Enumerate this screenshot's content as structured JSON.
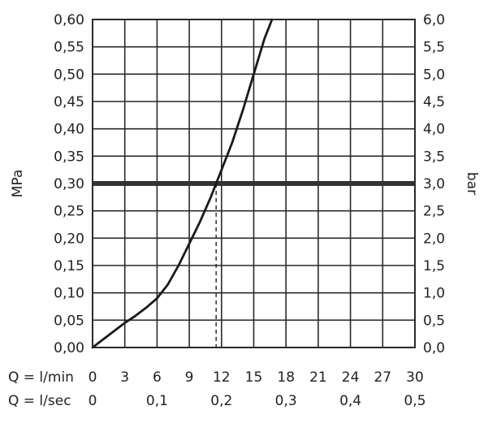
{
  "chart_data": {
    "type": "line",
    "y_left": {
      "label": "MPa",
      "range": [
        0,
        0.6
      ],
      "ticks": [
        "0,00",
        "0,05",
        "0,10",
        "0,15",
        "0,20",
        "0,25",
        "0,30",
        "0,35",
        "0,40",
        "0,45",
        "0,50",
        "0,55",
        "0,60"
      ]
    },
    "y_right": {
      "label": "bar",
      "range": [
        0,
        6
      ],
      "ticks": [
        "0,0",
        "0,5",
        "1,0",
        "1,5",
        "2,0",
        "2,5",
        "3,0",
        "3,5",
        "4,0",
        "4,5",
        "5,0",
        "5,5",
        "6,0"
      ]
    },
    "x_lmin": {
      "label": "Q = l/min",
      "range": [
        0,
        30
      ],
      "ticks": [
        "0",
        "3",
        "6",
        "9",
        "12",
        "15",
        "18",
        "21",
        "24",
        "27",
        "30"
      ]
    },
    "x_lsec": {
      "label": "Q = l/sec",
      "values": [
        0,
        0.1,
        0.2,
        0.3,
        0.4,
        0.5
      ],
      "ticks": [
        "0",
        "0,1",
        "0,2",
        "0,3",
        "0,4",
        "0,5"
      ]
    },
    "grid": true,
    "series": [
      {
        "color": "#1a1a1a",
        "x": [
          0,
          1,
          2,
          3,
          4,
          5,
          6,
          7,
          8,
          9,
          10,
          11,
          11.5,
          12,
          13,
          14,
          15,
          16,
          16.7
        ],
        "y": [
          0,
          0.015,
          0.03,
          0.045,
          0.058,
          0.073,
          0.09,
          0.115,
          0.15,
          0.19,
          0.23,
          0.275,
          0.3,
          0.325,
          0.375,
          0.435,
          0.5,
          0.565,
          0.6
        ]
      }
    ],
    "reference_line": {
      "y": 0.3,
      "color": "#333333"
    },
    "intersection_marker": {
      "x": 11.5,
      "y": 0.3
    }
  }
}
